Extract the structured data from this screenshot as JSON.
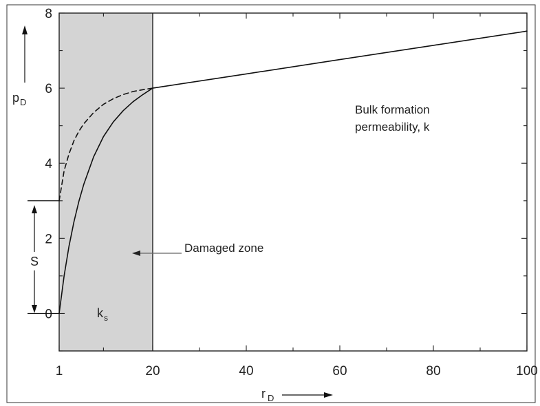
{
  "chart_data": {
    "type": "line",
    "xlim": [
      1,
      100
    ],
    "ylim": [
      -1,
      8
    ],
    "x_ticks": [
      1,
      20,
      40,
      60,
      80,
      100
    ],
    "x_tick_labels": [
      "1",
      "20",
      "40",
      "60",
      "80",
      "100"
    ],
    "y_ticks": [
      0,
      2,
      4,
      6,
      8
    ],
    "y_tick_labels": [
      "0",
      "2",
      "4",
      "6",
      "8"
    ],
    "xlabel": {
      "main": "r",
      "sub": "D"
    },
    "ylabel": {
      "main": "p",
      "sub": "D"
    },
    "grid": false,
    "legend": "none",
    "damaged_zone": {
      "x_from": 1,
      "x_to": 20,
      "fill": "#d4d4d4"
    },
    "series": [
      {
        "style": "solid",
        "color": "#111111",
        "x": [
          1,
          2,
          3,
          4,
          5,
          6,
          8,
          10,
          12,
          14,
          16,
          18,
          20,
          40,
          60,
          80,
          100
        ],
        "y": [
          0,
          1.0,
          1.79,
          2.44,
          2.98,
          3.44,
          4.17,
          4.71,
          5.1,
          5.4,
          5.64,
          5.83,
          6.0,
          6.38,
          6.76,
          7.14,
          7.52
        ]
      },
      {
        "style": "dashed",
        "color": "#111111",
        "x": [
          1,
          2,
          3,
          4,
          5,
          6,
          8,
          10,
          12,
          14,
          16,
          18,
          20
        ],
        "y": [
          3.0,
          3.8,
          4.25,
          4.6,
          4.85,
          5.05,
          5.35,
          5.57,
          5.72,
          5.83,
          5.91,
          5.96,
          6.0
        ]
      }
    ],
    "s_level": 3.0,
    "annotations": {
      "bulk_line1": "Bulk formation",
      "bulk_line2": "permeability, k",
      "damaged_zone": "Damaged zone",
      "ks": {
        "main": "k",
        "sub": "s"
      },
      "S": "S"
    }
  }
}
